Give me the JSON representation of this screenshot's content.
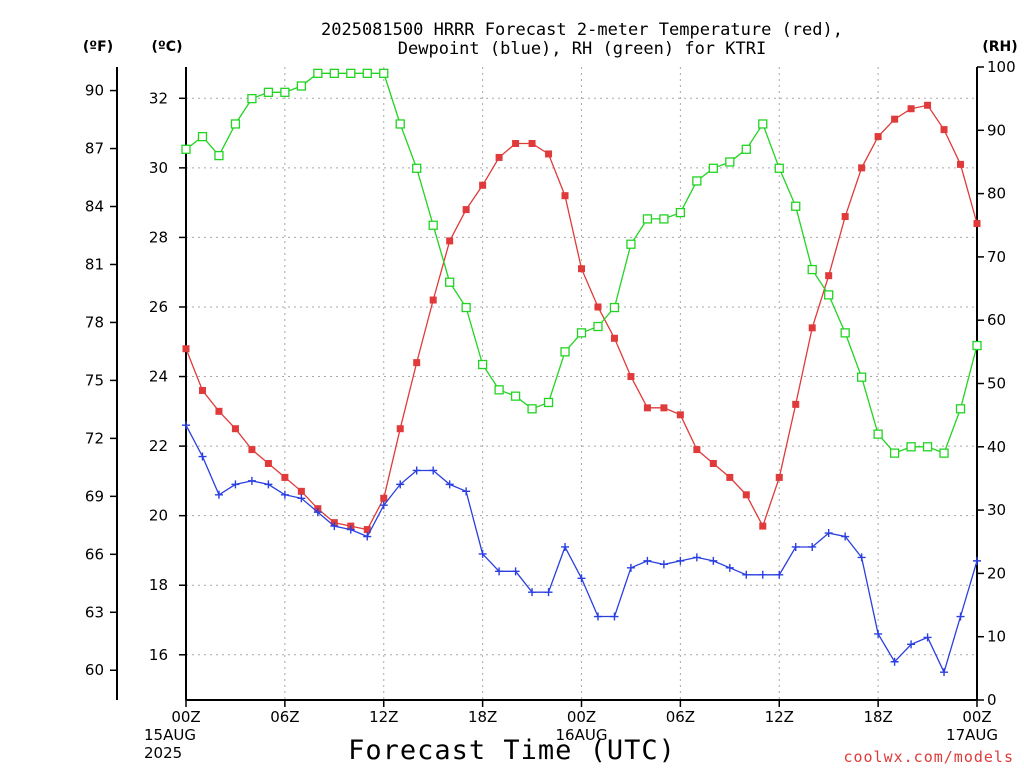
{
  "chart_data": {
    "type": "line",
    "title_line1": "2025081500 HRRR Forecast 2-meter Temperature (red),",
    "title_line2": "Dewpoint (blue), RH (green) for KTRI",
    "xlabel": "Forecast Time (UTC)",
    "credit": "coolwx.com/models",
    "units": {
      "fahrenheit": "(ºF)",
      "celsius": "(ºC)",
      "rh": "(RH)"
    },
    "x_hours": {
      "start": 0,
      "end": 48
    },
    "x_ticks": [
      {
        "h": 0,
        "lines": [
          "00Z",
          "15AUG",
          "2025"
        ]
      },
      {
        "h": 6,
        "lines": [
          "06Z"
        ]
      },
      {
        "h": 12,
        "lines": [
          "12Z"
        ]
      },
      {
        "h": 18,
        "lines": [
          "18Z"
        ]
      },
      {
        "h": 24,
        "lines": [
          "00Z",
          "16AUG"
        ]
      },
      {
        "h": 30,
        "lines": [
          "06Z"
        ]
      },
      {
        "h": 36,
        "lines": [
          "12Z"
        ]
      },
      {
        "h": 42,
        "lines": [
          "18Z"
        ]
      },
      {
        "h": 48,
        "lines": [
          "00Z",
          "17AUG"
        ]
      }
    ],
    "celsius_axis": {
      "ylim": [
        14.7,
        32.9
      ],
      "ticks": [
        16,
        18,
        20,
        22,
        24,
        26,
        28,
        30,
        32
      ]
    },
    "fahrenheit_ticks": [
      60,
      63,
      66,
      69,
      72,
      75,
      78,
      81,
      84,
      87,
      90
    ],
    "rh_axis": {
      "ylim": [
        0,
        100
      ],
      "ticks": [
        0,
        10,
        20,
        30,
        40,
        50,
        60,
        70,
        80,
        90,
        100
      ]
    },
    "grid": true,
    "colors": {
      "temperature": "#e03a3a",
      "dewpoint": "#2a3fe0",
      "rh": "#22d422",
      "axis": "#000000",
      "grid": "#a8a8a8"
    },
    "series": [
      {
        "key": "temperature",
        "axis": "celsius",
        "marker": "filled-square",
        "values": [
          24.8,
          23.6,
          23.0,
          22.5,
          21.9,
          21.5,
          21.1,
          20.7,
          20.2,
          19.8,
          19.7,
          19.6,
          20.5,
          22.5,
          24.4,
          26.2,
          27.9,
          28.8,
          29.5,
          30.3,
          30.7,
          30.7,
          30.4,
          29.2,
          27.1,
          26.0,
          25.1,
          24.0,
          23.1,
          23.1,
          22.9,
          21.9,
          21.5,
          21.1,
          20.6,
          19.7,
          21.1,
          23.2,
          25.4,
          26.9,
          28.6,
          30.0,
          30.9,
          31.4,
          31.7,
          31.8,
          31.1,
          30.1,
          28.4
        ]
      },
      {
        "key": "dewpoint",
        "axis": "celsius",
        "marker": "plus",
        "values": [
          22.6,
          21.7,
          20.6,
          20.9,
          21.0,
          20.9,
          20.6,
          20.5,
          20.1,
          19.7,
          19.6,
          19.4,
          20.3,
          20.9,
          21.3,
          21.3,
          20.9,
          20.7,
          18.9,
          18.4,
          18.4,
          17.8,
          17.8,
          19.1,
          18.2,
          17.1,
          17.1,
          18.5,
          18.7,
          18.6,
          18.7,
          18.8,
          18.7,
          18.5,
          18.3,
          18.3,
          18.3,
          19.1,
          19.1,
          19.5,
          19.4,
          18.8,
          16.6,
          15.8,
          16.3,
          16.5,
          15.5,
          17.1,
          18.7
        ]
      },
      {
        "key": "rh",
        "axis": "rh",
        "marker": "open-square",
        "values": [
          87,
          89,
          86,
          91,
          95,
          96,
          96,
          97,
          99,
          99,
          99,
          99,
          99,
          91,
          84,
          75,
          66,
          62,
          53,
          49,
          48,
          46,
          47,
          55,
          58,
          59,
          62,
          72,
          76,
          76,
          77,
          82,
          84,
          85,
          87,
          91,
          84,
          78,
          68,
          64,
          58,
          51,
          42,
          39,
          40,
          40,
          39,
          46,
          56
        ]
      }
    ]
  }
}
